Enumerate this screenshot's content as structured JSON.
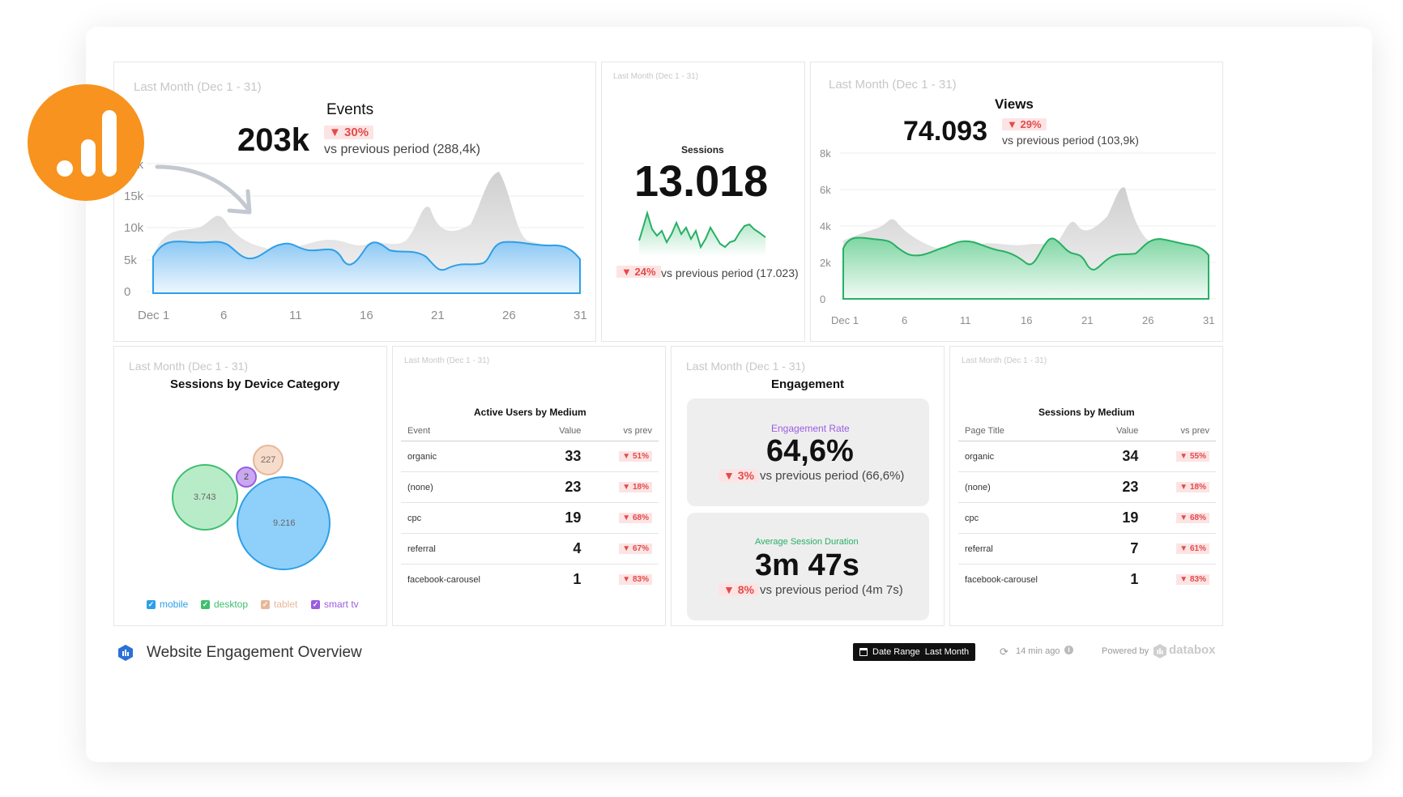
{
  "events": {
    "period": "Last Month (Dec 1 - 31)",
    "title": "Events",
    "value": "203k",
    "change": "▼ 30%",
    "comparison": "vs previous period (288,4k)",
    "y_ticks": [
      "20k",
      "15k",
      "10k",
      "5k",
      "0"
    ],
    "x_ticks": [
      "Dec 1",
      "6",
      "11",
      "16",
      "21",
      "26",
      "31"
    ]
  },
  "sessions": {
    "period": "Last Month (Dec 1 - 31)",
    "title": "Sessions",
    "value": "13.018",
    "change": "▼ 24%",
    "comparison": "vs previous period (17.023)"
  },
  "views": {
    "period": "Last Month (Dec 1 - 31)",
    "title": "Views",
    "value": "74.093",
    "change": "▼ 29%",
    "comparison": "vs previous period (103,9k)",
    "y_ticks": [
      "8k",
      "6k",
      "4k",
      "2k",
      "0"
    ],
    "x_ticks": [
      "Dec 1",
      "6",
      "11",
      "16",
      "21",
      "26",
      "31"
    ]
  },
  "device": {
    "period": "Last Month (Dec 1 - 31)",
    "title": "Sessions by Device Category",
    "bubbles": [
      {
        "label": "3.743",
        "series": "desktop"
      },
      {
        "label": "9.216",
        "series": "mobile"
      },
      {
        "label": "227",
        "series": "tablet"
      },
      {
        "label": "2",
        "series": "smart tv"
      }
    ],
    "legend": [
      {
        "label": "mobile",
        "color": "#2d9fe8"
      },
      {
        "label": "desktop",
        "color": "#3fbf6f"
      },
      {
        "label": "tablet",
        "color": "#e8b79a"
      },
      {
        "label": "smart tv",
        "color": "#9b5de0"
      }
    ]
  },
  "active_users": {
    "period": "Last Month (Dec 1 - 31)",
    "title": "Active Users by Medium",
    "headers": [
      "Event",
      "Value",
      "vs prev"
    ],
    "rows": [
      {
        "name": "organic",
        "value": "33",
        "change": "▼ 51%"
      },
      {
        "name": "(none)",
        "value": "23",
        "change": "▼ 18%"
      },
      {
        "name": "cpc",
        "value": "19",
        "change": "▼ 68%"
      },
      {
        "name": "referral",
        "value": "4",
        "change": "▼ 67%"
      },
      {
        "name": "facebook-carousel",
        "value": "1",
        "change": "▼ 83%"
      }
    ]
  },
  "engagement": {
    "period": "Last Month (Dec 1 - 31)",
    "title": "Engagement",
    "rate_label": "Engagement Rate",
    "rate_value": "64,6%",
    "rate_change": "▼ 3%",
    "rate_comparison": "vs previous period (66,6%)",
    "duration_label": "Average Session Duration",
    "duration_value": "3m 47s",
    "duration_change": "▼ 8%",
    "duration_comparison": "vs previous period (4m 7s)"
  },
  "sessions_medium": {
    "period": "Last Month (Dec 1 - 31)",
    "title": "Sessions by Medium",
    "headers": [
      "Page Title",
      "Value",
      "vs prev"
    ],
    "rows": [
      {
        "name": "organic",
        "value": "34",
        "change": "▼ 55%"
      },
      {
        "name": "(none)",
        "value": "23",
        "change": "▼ 18%"
      },
      {
        "name": "cpc",
        "value": "19",
        "change": "▼ 68%"
      },
      {
        "name": "referral",
        "value": "7",
        "change": "▼ 61%"
      },
      {
        "name": "facebook-carousel",
        "value": "1",
        "change": "▼ 83%"
      }
    ]
  },
  "footer": {
    "title": "Website Engagement Overview",
    "date_range_label": "Date Range",
    "date_range_value": "Last Month",
    "updated": "14 min ago",
    "powered_by": "Powered by",
    "brand": "databox"
  },
  "colors": {
    "accent_orange": "#f7931e",
    "blue": "#2d9fe8",
    "green": "#3fbf6f",
    "down": "#e34b4b",
    "purple": "#9b5de0"
  }
}
